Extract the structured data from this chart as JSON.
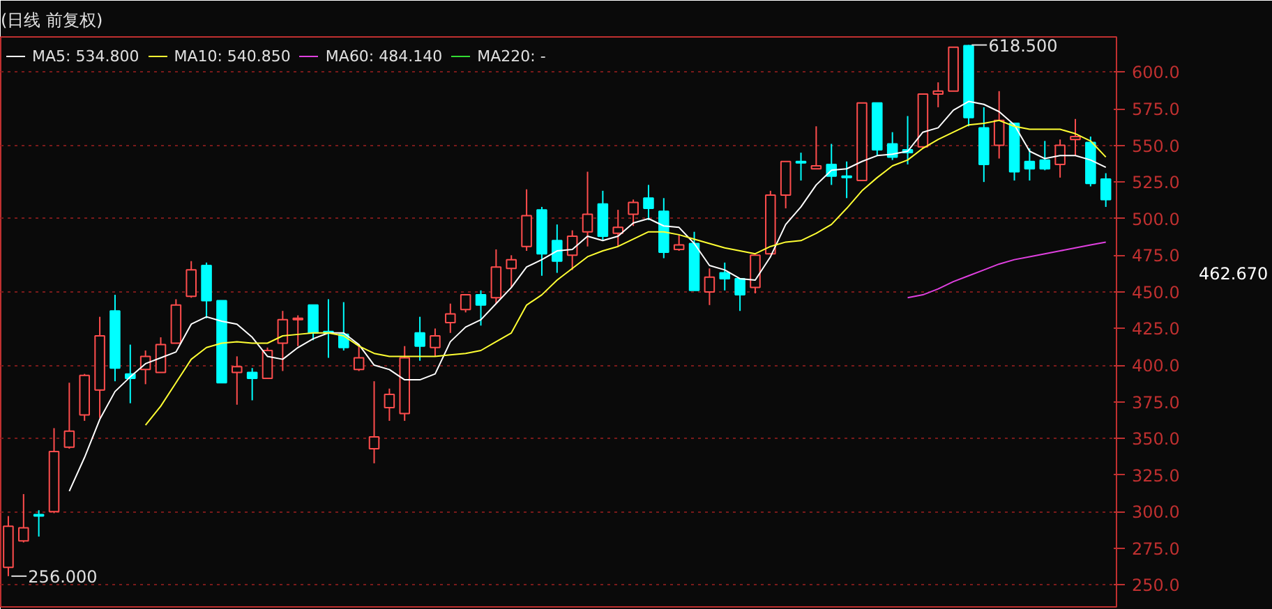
{
  "chart_data": {
    "type": "candlestick",
    "title": "(日线 前复权)",
    "categories": [
      null,
      null,
      null,
      null,
      null,
      null,
      null,
      null,
      null,
      null,
      null,
      null,
      null,
      null,
      null,
      null,
      null,
      null,
      null,
      null,
      null,
      null,
      null,
      null,
      null,
      null,
      null,
      null,
      null,
      null,
      null,
      null,
      null,
      null,
      null,
      null,
      null,
      null,
      null,
      null,
      null,
      null,
      null,
      null,
      null,
      null,
      null,
      null,
      null,
      null,
      null,
      null,
      null,
      null,
      null,
      null,
      null,
      null,
      null,
      null,
      null,
      null,
      null,
      null,
      null,
      null,
      null,
      null,
      null,
      null,
      null,
      null,
      null
    ],
    "ohlc": [
      [
        262,
        297,
        256,
        290
      ],
      [
        280,
        312,
        279,
        289
      ],
      [
        298,
        301,
        283,
        297
      ],
      [
        300,
        357,
        299,
        341
      ],
      [
        344,
        388,
        343,
        355
      ],
      [
        366,
        394,
        362,
        393
      ],
      [
        383,
        433,
        364,
        420
      ],
      [
        437,
        448,
        389,
        398
      ],
      [
        394,
        414,
        374,
        391
      ],
      [
        397,
        410,
        387,
        406
      ],
      [
        395,
        419,
        395,
        414
      ],
      [
        415,
        445,
        415,
        441
      ],
      [
        447,
        471,
        446,
        465
      ],
      [
        468,
        470,
        432,
        444
      ],
      [
        444,
        444,
        388,
        388
      ],
      [
        395,
        406,
        373,
        399
      ],
      [
        395,
        398,
        376,
        391
      ],
      [
        391,
        412,
        391,
        410
      ],
      [
        415,
        437,
        396,
        431
      ],
      [
        431,
        434,
        413,
        432
      ],
      [
        441,
        441,
        417,
        422
      ],
      [
        423,
        445,
        405,
        422
      ],
      [
        421,
        443,
        410,
        412
      ],
      [
        397,
        414,
        396,
        405
      ],
      [
        343,
        389,
        333,
        351
      ],
      [
        371,
        384,
        362,
        380
      ],
      [
        367,
        413,
        362,
        405
      ],
      [
        422,
        433,
        403,
        413
      ],
      [
        412,
        425,
        406,
        420
      ],
      [
        429,
        442,
        422,
        435
      ],
      [
        438,
        448,
        436,
        448
      ],
      [
        448,
        451,
        427,
        441
      ],
      [
        446,
        479,
        442,
        467
      ],
      [
        466,
        475,
        453,
        472
      ],
      [
        481,
        520,
        478,
        502
      ],
      [
        506,
        508,
        461,
        476
      ],
      [
        485,
        496,
        463,
        471
      ],
      [
        475,
        492,
        465,
        488
      ],
      [
        491,
        532,
        481,
        503
      ],
      [
        510,
        519,
        485,
        488
      ],
      [
        490,
        506,
        481,
        494
      ],
      [
        503,
        513,
        495,
        511
      ],
      [
        514,
        523,
        499,
        507
      ],
      [
        505,
        514,
        473,
        477
      ],
      [
        479,
        489,
        478,
        482
      ],
      [
        483,
        491,
        451,
        451
      ],
      [
        450,
        466,
        441,
        460
      ],
      [
        463,
        470,
        451,
        459
      ],
      [
        459,
        459,
        437,
        448
      ],
      [
        453,
        475,
        449,
        475
      ],
      [
        476,
        519,
        476,
        516
      ],
      [
        516,
        539,
        507,
        539
      ],
      [
        539,
        545,
        526,
        538
      ],
      [
        534,
        563,
        534,
        536
      ],
      [
        537,
        551,
        523,
        529
      ],
      [
        529,
        539,
        514,
        528
      ],
      [
        526,
        579,
        526,
        579
      ],
      [
        579,
        579,
        543,
        547
      ],
      [
        551,
        559,
        540,
        542
      ],
      [
        547,
        570,
        537,
        545
      ],
      [
        549,
        585,
        548,
        585
      ],
      [
        585,
        593,
        576,
        587
      ],
      [
        587,
        617,
        587,
        617
      ],
      [
        618,
        618.5,
        563,
        569
      ],
      [
        562,
        576,
        525,
        537
      ],
      [
        550,
        587,
        541,
        567
      ],
      [
        565,
        565,
        526,
        532
      ],
      [
        539,
        548,
        526,
        534
      ],
      [
        540,
        553,
        533,
        534
      ],
      [
        537,
        554,
        528,
        550
      ],
      [
        554,
        568,
        543,
        556
      ],
      [
        552,
        556,
        522,
        524
      ],
      [
        527,
        531,
        508,
        513
      ]
    ],
    "colors": [
      "#ff4d4d",
      "#ff4d4d",
      "#00ffff",
      "#ff4d4d",
      "#ff4d4d",
      "#ff4d4d",
      "#ff4d4d",
      "#00ffff",
      "#00ffff",
      "#ff4d4d",
      "#ff4d4d",
      "#ff4d4d",
      "#ff4d4d",
      "#00ffff",
      "#00ffff",
      "#ff4d4d",
      "#00ffff",
      "#ff4d4d",
      "#ff4d4d",
      "#ff4d4d",
      "#00ffff",
      "#00ffff",
      "#00ffff",
      "#ff4d4d",
      "#ff4d4d",
      "#ff4d4d",
      "#ff4d4d",
      "#00ffff",
      "#ff4d4d",
      "#ff4d4d",
      "#ff4d4d",
      "#00ffff",
      "#ff4d4d",
      "#ff4d4d",
      "#ff4d4d",
      "#00ffff",
      "#00ffff",
      "#ff4d4d",
      "#ff4d4d",
      "#00ffff",
      "#ff4d4d",
      "#ff4d4d",
      "#00ffff",
      "#00ffff",
      "#ff4d4d",
      "#00ffff",
      "#ff4d4d",
      "#00ffff",
      "#00ffff",
      "#ff4d4d",
      "#ff4d4d",
      "#ff4d4d",
      "#00ffff",
      "#ff4d4d",
      "#00ffff",
      "#00ffff",
      "#ff4d4d",
      "#00ffff",
      "#00ffff",
      "#00ffff",
      "#ff4d4d",
      "#ff4d4d",
      "#ff4d4d",
      "#00ffff",
      "#00ffff",
      "#ff4d4d",
      "#00ffff",
      "#00ffff",
      "#00ffff",
      "#ff4d4d",
      "#ff4d4d",
      "#00ffff",
      "#00ffff"
    ],
    "series": [
      {
        "name": "MA5: 534.800",
        "type": "line",
        "color": "#ffffff",
        "values": [
          null,
          null,
          null,
          null,
          314,
          337,
          363,
          382,
          392,
          401,
          405,
          409,
          428,
          433,
          430,
          428,
          419,
          406,
          404,
          412,
          418,
          422,
          422,
          414,
          400,
          397,
          390,
          390,
          394,
          416,
          426,
          431,
          442,
          453,
          467,
          472,
          478,
          479,
          488,
          485,
          488,
          497,
          500,
          495,
          494,
          483,
          468,
          465,
          459,
          458,
          474,
          496,
          508,
          523,
          533,
          534,
          539,
          543,
          544,
          546,
          559,
          562,
          574,
          580,
          578,
          573,
          564,
          546,
          541,
          543,
          543,
          540,
          535
        ]
      },
      {
        "name": "MA10: 540.850",
        "type": "line",
        "color": "#ffff33",
        "values": [
          null,
          null,
          null,
          null,
          null,
          null,
          null,
          null,
          null,
          359,
          372,
          388,
          404,
          412,
          415,
          416,
          415,
          415,
          420,
          421,
          422,
          422,
          420,
          413,
          408,
          406,
          406,
          406,
          406,
          407,
          408,
          410,
          416,
          422,
          441,
          448,
          458,
          466,
          474,
          478,
          481,
          486,
          491,
          491,
          489,
          486,
          483,
          480,
          478,
          476,
          481,
          484,
          485,
          490,
          496,
          507,
          519,
          528,
          536,
          540,
          548,
          554,
          559,
          564,
          565,
          567,
          563,
          561,
          561,
          561,
          558,
          553,
          542
        ]
      },
      {
        "name": "MA60: 484.140",
        "type": "line",
        "color": "#e040e0",
        "values": [
          null,
          null,
          null,
          null,
          null,
          null,
          null,
          null,
          null,
          null,
          null,
          null,
          null,
          null,
          null,
          null,
          null,
          null,
          null,
          null,
          null,
          null,
          null,
          null,
          null,
          null,
          null,
          null,
          null,
          null,
          null,
          null,
          null,
          null,
          null,
          null,
          null,
          null,
          null,
          null,
          null,
          null,
          null,
          null,
          null,
          null,
          null,
          null,
          null,
          null,
          null,
          null,
          null,
          null,
          null,
          null,
          null,
          null,
          null,
          446,
          448,
          452,
          457,
          461,
          465,
          469,
          472,
          474,
          476,
          478,
          480,
          482,
          484
        ]
      },
      {
        "name": "MA220: -",
        "type": "line",
        "color": "#33dd33",
        "values": [
          null,
          null,
          null,
          null,
          null,
          null,
          null,
          null,
          null,
          null,
          null,
          null,
          null,
          null,
          null,
          null,
          null,
          null,
          null,
          null,
          null,
          null,
          null,
          null,
          null,
          null,
          null,
          null,
          null,
          null,
          null,
          null,
          null,
          null,
          null,
          null,
          null,
          null,
          null,
          null,
          null,
          null,
          null,
          null,
          null,
          null,
          null,
          null,
          null,
          null,
          null,
          null,
          null,
          null,
          null,
          null,
          null,
          null,
          null,
          null,
          null,
          null,
          null,
          null,
          null,
          null,
          null,
          null,
          null,
          null,
          null,
          null,
          null
        ]
      }
    ],
    "ylim": [
      235,
      624
    ],
    "yticks": [
      {
        "value": 250,
        "label": "250.0"
      },
      {
        "value": 275,
        "label": "275.0"
      },
      {
        "value": 300,
        "label": "300.0"
      },
      {
        "value": 325,
        "label": "325.0"
      },
      {
        "value": 350,
        "label": "350.0"
      },
      {
        "value": 375,
        "label": "375.0"
      },
      {
        "value": 400,
        "label": "400.0"
      },
      {
        "value": 425,
        "label": "425.0"
      },
      {
        "value": 450,
        "label": "450.0"
      },
      {
        "value": 475,
        "label": "475.0"
      },
      {
        "value": 500,
        "label": "500.0"
      },
      {
        "value": 525,
        "label": "525.0"
      },
      {
        "value": 550,
        "label": "550.0"
      },
      {
        "value": 575,
        "label": "575.0"
      },
      {
        "value": 600,
        "label": "600.0"
      }
    ],
    "grid": "y",
    "legend": "top left",
    "annotations": [
      "618.500",
      "256.000",
      "462.670"
    ]
  }
}
